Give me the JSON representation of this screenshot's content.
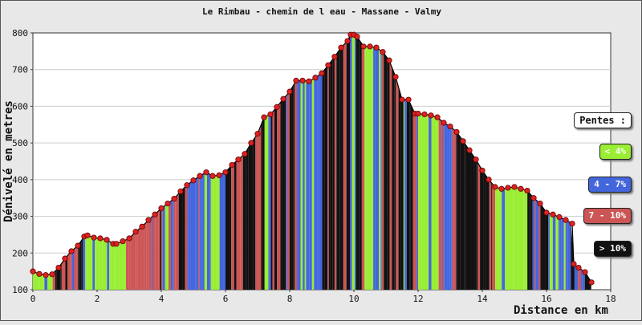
{
  "chart_data": {
    "type": "area",
    "title": "Le Rimbau - chemin de l eau - Massane - Valmy",
    "xlabel": "Distance en km",
    "ylabel": "Dénivelé en metres",
    "xlim": [
      0,
      18
    ],
    "ylim": [
      100,
      800
    ],
    "xticks": [
      "0",
      "2",
      "4",
      "6",
      "8",
      "10",
      "12",
      "14",
      "16",
      "18"
    ],
    "yticks": [
      "100",
      "200",
      "300",
      "400",
      "500",
      "600",
      "700",
      "800"
    ],
    "grid": "horizontal",
    "series": [
      {
        "x": [
          0,
          0.2,
          0.4,
          0.6,
          0.8,
          1.0,
          1.2,
          1.4,
          1.6,
          1.7,
          1.9,
          2.1,
          2.3,
          2.5,
          2.6,
          2.8,
          3.0,
          3.2,
          3.4,
          3.6,
          3.8,
          4.0,
          4.2,
          4.4,
          4.6,
          4.8,
          5.0,
          5.2,
          5.4,
          5.6,
          5.8,
          6.0,
          6.2,
          6.4,
          6.6,
          6.8,
          7.0,
          7.2,
          7.4,
          7.6,
          7.8,
          8.0,
          8.2,
          8.4,
          8.6,
          8.8,
          9.0,
          9.2,
          9.4,
          9.6,
          9.8,
          9.9,
          10.0,
          10.1,
          10.3,
          10.5,
          10.7,
          10.9,
          11.1,
          11.3,
          11.5,
          11.7,
          11.9,
          12.0,
          12.2,
          12.4,
          12.6,
          12.8,
          13.0,
          13.2,
          13.4,
          13.6,
          13.8,
          14.0,
          14.2,
          14.4,
          14.6,
          14.8,
          15.0,
          15.2,
          15.4,
          15.6,
          15.8,
          16.0,
          16.2,
          16.4,
          16.6,
          16.8,
          16.85,
          17.0,
          17.2,
          17.4
        ],
        "y": [
          150,
          143,
          140,
          142,
          160,
          185,
          205,
          220,
          245,
          248,
          242,
          240,
          236,
          225,
          225,
          232,
          240,
          258,
          272,
          290,
          305,
          322,
          335,
          348,
          368,
          385,
          398,
          410,
          420,
          410,
          412,
          420,
          440,
          455,
          470,
          500,
          525,
          570,
          578,
          598,
          620,
          640,
          670,
          670,
          668,
          678,
          690,
          712,
          735,
          760,
          778,
          795,
          795,
          790,
          763,
          763,
          760,
          748,
          725,
          680,
          618,
          618,
          580,
          580,
          578,
          575,
          570,
          555,
          545,
          530,
          505,
          480,
          455,
          425,
          400,
          380,
          375,
          378,
          380,
          375,
          370,
          350,
          335,
          310,
          305,
          298,
          290,
          280,
          170,
          160,
          148,
          120
        ]
      }
    ],
    "slope_classes": [
      {
        "label": "< 4%",
        "color": "#99ee33"
      },
      {
        "label": "4 - 7%",
        "color": "#4466dd"
      },
      {
        "label": "7 - 10%",
        "color": "#cc5555"
      },
      {
        "label": "> 10%",
        "color": "#111111"
      }
    ],
    "legend": {
      "title": "Pentes :",
      "position": "right"
    },
    "area_border_color": "#000000",
    "marker_color": "#dd2222",
    "plot_background": "#ffffff"
  }
}
